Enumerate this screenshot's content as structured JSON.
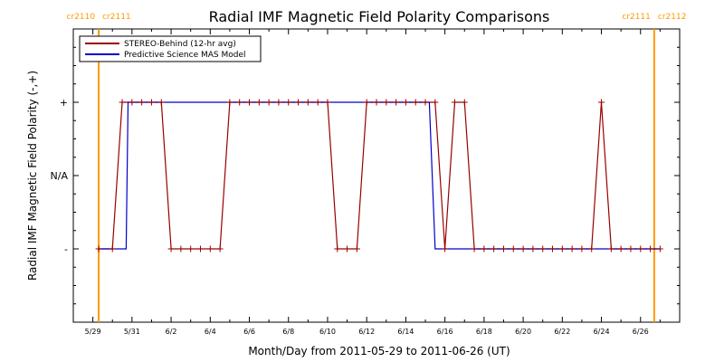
{
  "chart_data": {
    "type": "line",
    "title": "Radial IMF Magnetic Field Polarity Comparisons",
    "xlabel": "Month/Day from 2011-05-29 to 2011-06-26 (UT)",
    "ylabel": "Radial IMF Magnetic Field Polarity (-,+)",
    "x_tick_labels": [
      "5/29",
      "5/31",
      "6/2",
      "6/4",
      "6/6",
      "6/8",
      "6/10",
      "6/12",
      "6/14",
      "6/16",
      "6/18",
      "6/20",
      "6/22",
      "6/24",
      "6/26"
    ],
    "y_tick_labels": [
      "-",
      "N/A",
      "+"
    ],
    "ylim": [
      -2,
      2
    ],
    "carrington_markers": [
      {
        "x": 0.3,
        "left": "cr2110",
        "right": "cr2111"
      },
      {
        "x": 28.7,
        "left": "cr2111",
        "right": "cr2112"
      }
    ],
    "colors": {
      "stereo": "#990000",
      "model": "#0000cc",
      "carrington": "#ff9900"
    },
    "series": [
      {
        "name": "STEREO-Behind (12-hr avg)",
        "x": [
          0.3,
          1.0,
          1.5,
          2.0,
          2.5,
          3.0,
          3.5,
          4.0,
          4.5,
          5.0,
          5.5,
          6.0,
          6.5,
          7.0,
          7.5,
          8.0,
          8.5,
          9.0,
          9.5,
          10.0,
          10.5,
          11.0,
          11.5,
          12.0,
          12.5,
          13.0,
          13.5,
          14.0,
          14.5,
          15.0,
          15.5,
          16.0,
          16.5,
          17.0,
          17.5,
          18.0,
          18.5,
          19.0,
          19.5,
          20.0,
          20.5,
          21.0,
          21.5,
          22.0,
          22.5,
          23.0,
          23.5,
          24.0,
          24.5,
          25.0,
          25.5,
          26.0,
          26.5,
          27.0,
          27.5,
          28.0,
          28.5,
          29.0
        ],
        "y": [
          -1,
          -1,
          1,
          1,
          1,
          1,
          1,
          -1,
          -1,
          -1,
          -1,
          -1,
          -1,
          1,
          1,
          1,
          1,
          1,
          1,
          1,
          1,
          1,
          1,
          1,
          -1,
          -1,
          -1,
          1,
          1,
          1,
          1,
          1,
          1,
          1,
          1,
          -1,
          1,
          1,
          -1,
          -1,
          -1,
          -1,
          -1,
          -1,
          -1,
          -1,
          -1,
          -1,
          -1,
          -1,
          -1,
          1,
          -1,
          -1,
          -1,
          -1,
          -1,
          -1
        ]
      },
      {
        "name": "Predictive Science MAS Model",
        "x": [
          0.3,
          1.7,
          1.8,
          17.2,
          17.5,
          29.0
        ],
        "y": [
          -1,
          -1,
          1,
          1,
          -1,
          -1
        ]
      }
    ],
    "legend_position": "top-left"
  }
}
